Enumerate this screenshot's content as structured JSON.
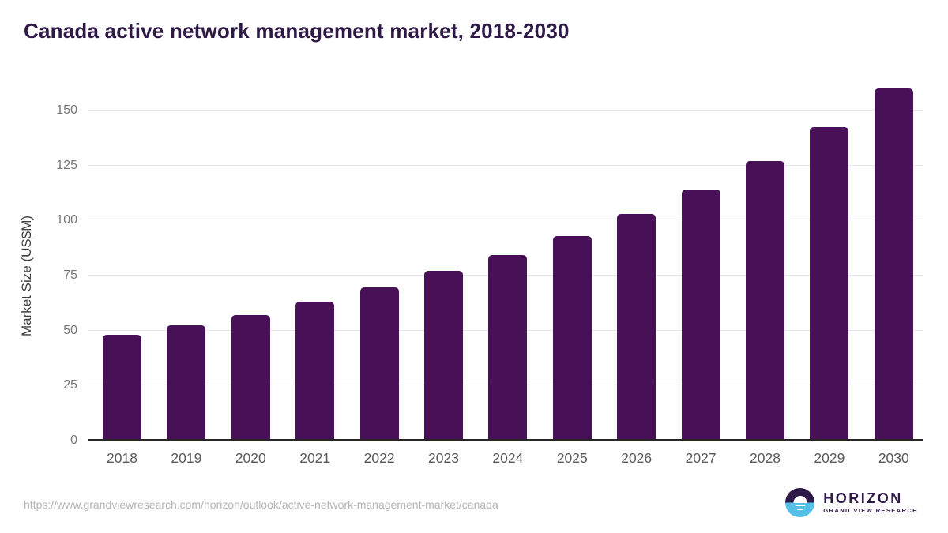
{
  "title": "Canada active network management market, 2018-2030",
  "footer": {
    "source_url": "https://www.grandviewresearch.com/horizon/outlook/active-network-management-market/canada"
  },
  "logo": {
    "name": "HORIZON",
    "subtitle": "GRAND VIEW RESEARCH",
    "mark": "horizon-sun-over-water-icon",
    "purple": "#2e1a47",
    "blue": "#54c0e8"
  },
  "chart_data": {
    "type": "bar",
    "title": "Canada active network management market, 2018-2030",
    "categories": [
      "2018",
      "2019",
      "2020",
      "2021",
      "2022",
      "2023",
      "2024",
      "2025",
      "2026",
      "2027",
      "2028",
      "2029",
      "2030"
    ],
    "values": [
      48,
      52.5,
      57,
      63,
      69.5,
      77,
      84.5,
      93,
      103,
      114,
      127,
      142.5,
      160
    ],
    "xlabel": "",
    "ylabel": "Market Size (US$M)",
    "ylim": [
      0,
      162.5
    ],
    "yticks": [
      0,
      25,
      50,
      75,
      100,
      125,
      150
    ],
    "grid": true,
    "legend": "none",
    "bar_color": "#481057",
    "gridline_color": "#e7e7ea",
    "axis_color": "#262626",
    "tick_label_color": "#767676",
    "x_label_color": "#58595b"
  }
}
